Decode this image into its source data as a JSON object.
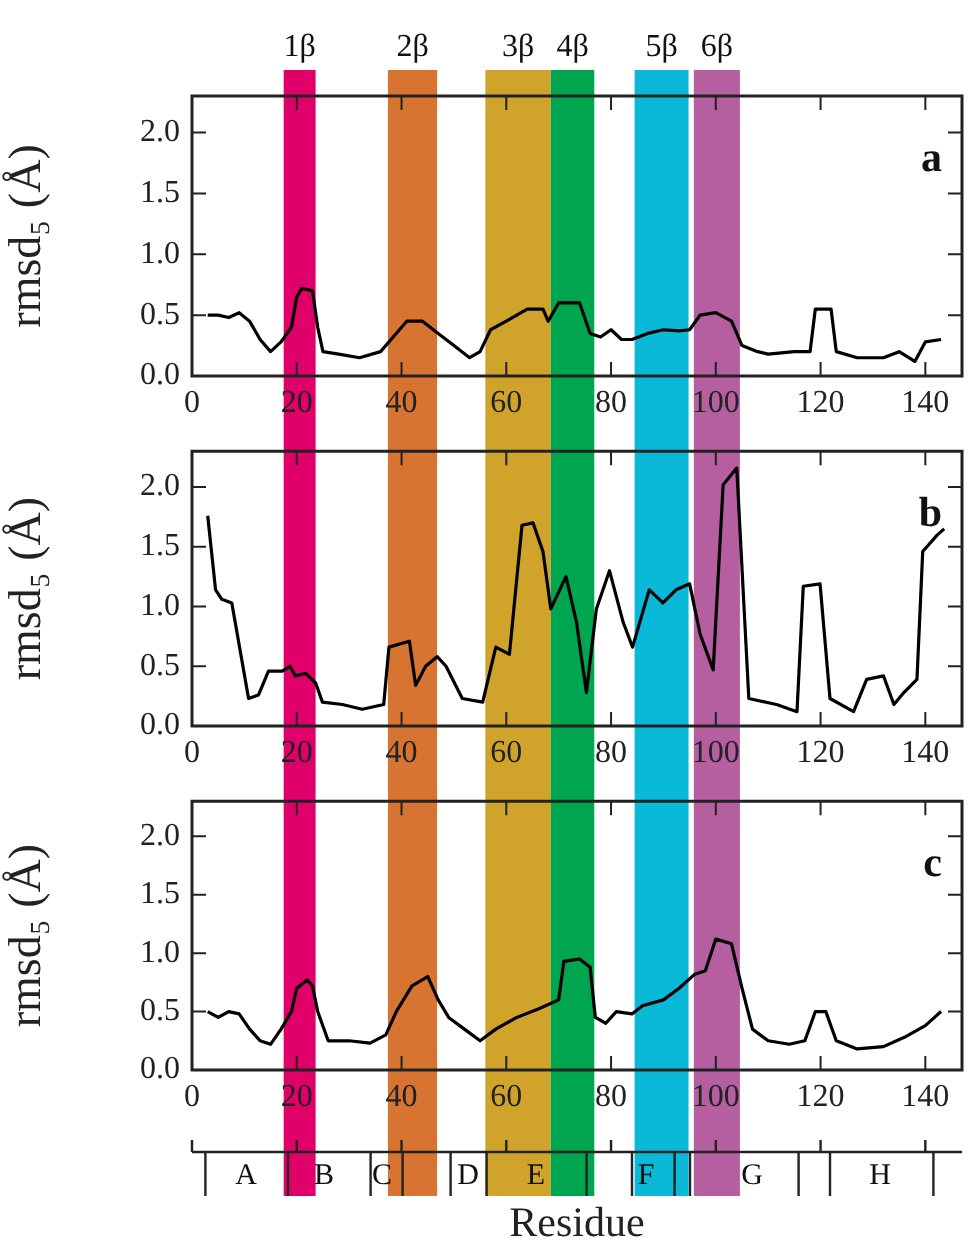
{
  "chart_data": [
    {
      "type": "line",
      "ylabel": "rmsd₅ (Å)",
      "annotations": [
        "a"
      ],
      "legend": false,
      "grid": false,
      "marker": "none",
      "line_style": "solid",
      "xlim": [
        0,
        147
      ],
      "xticks": [
        0,
        20,
        40,
        60,
        80,
        100,
        120,
        140
      ],
      "ylim": [
        0,
        2.3
      ],
      "yticks": [
        {
          "value": 0,
          "label": "0.0"
        },
        {
          "value": 0.5,
          "label": "0.5"
        },
        {
          "value": 1,
          "label": "1.0"
        },
        {
          "value": 1.5,
          "label": "1.5"
        },
        {
          "value": 2,
          "label": "2.0"
        }
      ],
      "bands": [
        {
          "axis": "x",
          "from": 17.5,
          "to": 23.6,
          "label": "1β",
          "color": "#e0006a"
        },
        {
          "axis": "x",
          "from": 37.4,
          "to": 46.8,
          "label": "2β",
          "color": "#d87432"
        },
        {
          "axis": "x",
          "from": 56,
          "to": 68.5,
          "label": "3β",
          "color": "#d0a42a"
        },
        {
          "axis": "x",
          "from": 68.5,
          "to": 76.8,
          "label": "4β",
          "color": "#00a550"
        },
        {
          "axis": "x",
          "from": 84.5,
          "to": 94.8,
          "label": "5β",
          "color": "#0ab9d8"
        },
        {
          "axis": "x",
          "from": 95.8,
          "to": 104.6,
          "label": "6β",
          "color": "#b65fa0"
        }
      ],
      "x": [
        3,
        5,
        7,
        9,
        11,
        13,
        15,
        17,
        19,
        20,
        21,
        23,
        24,
        25,
        28,
        32,
        36,
        38,
        41,
        44,
        47,
        50,
        53,
        55,
        57,
        60,
        64,
        67,
        68,
        70,
        74,
        76,
        78,
        80,
        82,
        84,
        87,
        90,
        93,
        95,
        97,
        100,
        103,
        105,
        108,
        110,
        115,
        118,
        119,
        122,
        123,
        127,
        132,
        135,
        138,
        140,
        143
      ],
      "series": [
        {
          "color": "#000000",
          "values": [
            0.5,
            0.5,
            0.48,
            0.52,
            0.45,
            0.3,
            0.2,
            0.28,
            0.4,
            0.65,
            0.72,
            0.7,
            0.4,
            0.2,
            0.18,
            0.15,
            0.2,
            0.3,
            0.45,
            0.45,
            0.35,
            0.25,
            0.15,
            0.2,
            0.38,
            0.45,
            0.55,
            0.55,
            0.45,
            0.6,
            0.6,
            0.35,
            0.32,
            0.38,
            0.3,
            0.3,
            0.35,
            0.38,
            0.37,
            0.38,
            0.5,
            0.52,
            0.45,
            0.25,
            0.2,
            0.18,
            0.2,
            0.2,
            0.55,
            0.55,
            0.2,
            0.15,
            0.15,
            0.2,
            0.12,
            0.28,
            0.3
          ]
        }
      ]
    },
    {
      "type": "line",
      "ylabel": "rmsd₅ (Å)",
      "annotations": [
        "b"
      ],
      "legend": false,
      "grid": false,
      "marker": "none",
      "line_style": "solid",
      "xlim": [
        0,
        147
      ],
      "xticks": [
        0,
        20,
        40,
        60,
        80,
        100,
        120,
        140
      ],
      "ylim": [
        0,
        2.3
      ],
      "yticks": [
        {
          "value": 0,
          "label": "0.0"
        },
        {
          "value": 0.5,
          "label": "0.5"
        },
        {
          "value": 1,
          "label": "1.0"
        },
        {
          "value": 1.5,
          "label": "1.5"
        },
        {
          "value": 2,
          "label": "2.0"
        }
      ],
      "bands": [
        {
          "axis": "x",
          "from": 17.5,
          "to": 23.6,
          "color": "#e0006a"
        },
        {
          "axis": "x",
          "from": 37.4,
          "to": 46.8,
          "color": "#d87432"
        },
        {
          "axis": "x",
          "from": 56,
          "to": 68.5,
          "color": "#d0a42a"
        },
        {
          "axis": "x",
          "from": 68.5,
          "to": 76.8,
          "color": "#00a550"
        },
        {
          "axis": "x",
          "from": 84.5,
          "to": 94.8,
          "color": "#0ab9d8"
        },
        {
          "axis": "x",
          "from": 95.8,
          "to": 104.6,
          "color": "#b65fa0"
        }
      ],
      "x": [
        3,
        4.5,
        5.7,
        7.6,
        10.8,
        12.7,
        14.6,
        17.2,
        18.7,
        19.7,
        21.7,
        23.6,
        24.9,
        28.7,
        32.5,
        36.6,
        37.6,
        41.5,
        42.7,
        44.6,
        46.8,
        48.5,
        51.6,
        55.5,
        56.8,
        58,
        60.6,
        63,
        65.1,
        67,
        68.5,
        71.4,
        73.4,
        75.3,
        77.2,
        79.7,
        82.3,
        84.1,
        87.3,
        89.9,
        92.4,
        95,
        97,
        99.5,
        101.4,
        104,
        106.3,
        111.6,
        115.5,
        116.7,
        119.9,
        121.8,
        126.3,
        128.8,
        132,
        134,
        135.9,
        138.4,
        139.5,
        142.3,
        143.6
      ],
      "series": [
        {
          "color": "#000000",
          "values": [
            1.76,
            1.14,
            1.06,
            1.03,
            0.23,
            0.26,
            0.46,
            0.46,
            0.5,
            0.42,
            0.44,
            0.36,
            0.2,
            0.18,
            0.14,
            0.18,
            0.66,
            0.71,
            0.34,
            0.5,
            0.58,
            0.5,
            0.23,
            0.2,
            0.44,
            0.66,
            0.6,
            1.68,
            1.7,
            1.46,
            0.98,
            1.25,
            0.87,
            0.28,
            0.98,
            1.3,
            0.87,
            0.66,
            1.14,
            1.03,
            1.14,
            1.19,
            0.77,
            0.47,
            2.02,
            2.16,
            0.23,
            0.18,
            0.12,
            1.17,
            1.19,
            0.23,
            0.12,
            0.39,
            0.42,
            0.18,
            0.28,
            0.39,
            1.46,
            1.6,
            1.65
          ]
        }
      ]
    },
    {
      "type": "line",
      "xlabel": "Residue",
      "ylabel": "rmsd₅ (Å)",
      "annotations": [
        "c",
        "A",
        "B",
        "C",
        "D",
        "E",
        "F",
        "G",
        "H"
      ],
      "legend": false,
      "grid": false,
      "marker": "none",
      "line_style": "solid",
      "xlim": [
        0,
        147
      ],
      "xticks": [
        0,
        20,
        40,
        60,
        80,
        100,
        120,
        140
      ],
      "ylim": [
        0,
        2.3
      ],
      "yticks": [
        {
          "value": 0,
          "label": "0.0"
        },
        {
          "value": 0.5,
          "label": "0.5"
        },
        {
          "value": 1,
          "label": "1.0"
        },
        {
          "value": 1.5,
          "label": "1.5"
        },
        {
          "value": 2,
          "label": "2.0"
        }
      ],
      "bands": [
        {
          "axis": "x",
          "from": 17.5,
          "to": 23.6,
          "color": "#e0006a"
        },
        {
          "axis": "x",
          "from": 37.4,
          "to": 46.8,
          "color": "#d87432"
        },
        {
          "axis": "x",
          "from": 56,
          "to": 68.5,
          "color": "#d0a42a"
        },
        {
          "axis": "x",
          "from": 68.5,
          "to": 76.8,
          "color": "#00a550"
        },
        {
          "axis": "x",
          "from": 84.5,
          "to": 94.8,
          "color": "#0ab9d8"
        },
        {
          "axis": "x",
          "from": 95.8,
          "to": 104.6,
          "color": "#b65fa0"
        }
      ],
      "x": [
        3,
        5,
        7,
        9,
        11,
        13,
        15,
        17,
        19,
        20,
        22,
        23,
        24,
        26,
        30,
        34,
        37,
        39,
        42,
        45,
        47,
        49,
        52,
        55,
        58,
        62,
        66,
        70,
        71,
        74,
        76,
        77,
        79,
        81,
        84,
        86,
        90,
        93,
        96,
        98,
        100,
        103,
        105,
        107,
        110,
        114,
        117,
        119,
        121,
        123,
        127,
        132,
        136,
        140,
        143
      ],
      "series": [
        {
          "color": "#000000",
          "values": [
            0.5,
            0.45,
            0.5,
            0.48,
            0.35,
            0.25,
            0.22,
            0.35,
            0.5,
            0.7,
            0.77,
            0.72,
            0.5,
            0.25,
            0.25,
            0.23,
            0.3,
            0.5,
            0.72,
            0.8,
            0.6,
            0.45,
            0.35,
            0.25,
            0.35,
            0.45,
            0.52,
            0.6,
            0.93,
            0.95,
            0.88,
            0.45,
            0.4,
            0.5,
            0.48,
            0.55,
            0.6,
            0.7,
            0.82,
            0.85,
            1.12,
            1.08,
            0.7,
            0.35,
            0.25,
            0.22,
            0.25,
            0.5,
            0.5,
            0.25,
            0.18,
            0.2,
            0.28,
            0.38,
            0.5
          ]
        }
      ]
    }
  ]
}
